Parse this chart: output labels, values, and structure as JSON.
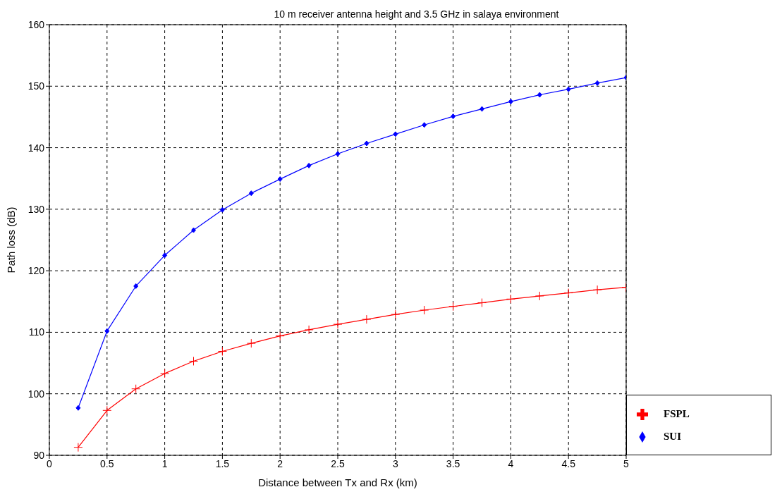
{
  "chart_data": {
    "type": "line",
    "title": "10 m receiver antenna height and 3.5 GHz in salaya environment",
    "xlabel": "Distance between Tx and Rx (km)",
    "ylabel": "Path loss (dB)",
    "x": [
      0.25,
      0.5,
      0.75,
      1,
      1.25,
      1.5,
      1.75,
      2,
      2.25,
      2.5,
      2.75,
      3,
      3.25,
      3.5,
      3.75,
      4,
      4.25,
      4.5,
      4.75,
      5
    ],
    "series": [
      {
        "name": "FSPL",
        "color": "#ff0000",
        "marker": "cross",
        "values": [
          91.3,
          97.3,
          100.8,
          103.3,
          105.3,
          106.9,
          108.2,
          109.4,
          110.4,
          111.3,
          112.1,
          112.9,
          113.6,
          114.2,
          114.8,
          115.4,
          115.9,
          116.4,
          116.9,
          117.3
        ]
      },
      {
        "name": "SUI",
        "color": "#0000ff",
        "marker": "diamond",
        "values": [
          97.7,
          110.2,
          117.5,
          122.5,
          126.6,
          129.9,
          132.6,
          134.9,
          137.1,
          139.0,
          140.7,
          142.2,
          143.7,
          145.1,
          146.3,
          147.5,
          148.6,
          149.5,
          150.5,
          151.4
        ]
      }
    ],
    "xlim": [
      0,
      5
    ],
    "xticks": [
      0,
      0.5,
      1,
      1.5,
      2,
      2.5,
      3,
      3.5,
      4,
      4.5,
      5
    ],
    "ylim": [
      90,
      160
    ],
    "yticks": [
      90,
      100,
      110,
      120,
      130,
      140,
      150,
      160
    ],
    "grid": true,
    "legend": "bottom right",
    "line_style": "solid"
  }
}
